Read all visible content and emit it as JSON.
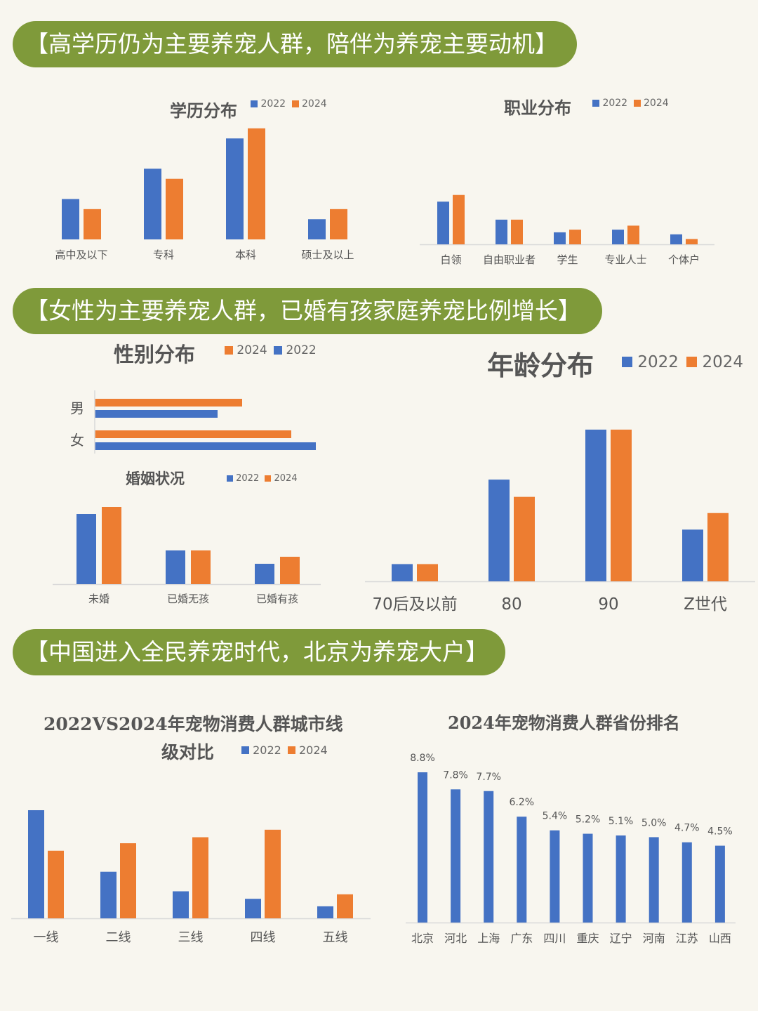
{
  "banners": {
    "b1": "【高学历仍为主要养宠人群，陪伴为养宠主要动机】",
    "b2": "【女性为主要养宠人群，已婚有孩家庭养宠比例增长】",
    "b3": "【中国进入全民养宠时代，北京为养宠大户】"
  },
  "colors": {
    "blue": "#4472c4",
    "orange": "#ed7d31",
    "banner": "#7f9a3a"
  },
  "chart_data": [
    {
      "id": "edu",
      "type": "bar",
      "title": "学历分布",
      "categories": [
        "高中及以下",
        "专科",
        "本科",
        "硕士及以上"
      ],
      "series": [
        {
          "name": "2022",
          "color": "#4472c4",
          "values": [
            6,
            10.5,
            15,
            3
          ]
        },
        {
          "name": "2024",
          "color": "#ed7d31",
          "values": [
            4.5,
            9,
            16.5,
            4.5
          ]
        }
      ],
      "ylim": [
        0,
        17
      ]
    },
    {
      "id": "job",
      "type": "bar",
      "title": "职业分布",
      "categories": [
        "白领",
        "自由职业者",
        "学生",
        "专业人士",
        "个体户"
      ],
      "series": [
        {
          "name": "2022",
          "color": "#4472c4",
          "values": [
            64,
            37,
            18,
            22,
            15
          ]
        },
        {
          "name": "2024",
          "color": "#ed7d31",
          "values": [
            74,
            37,
            22,
            28,
            8
          ]
        }
      ],
      "ylim": [
        0,
        80
      ]
    },
    {
      "id": "gender",
      "type": "bar",
      "orientation": "horizontal",
      "title": "性别分布",
      "categories": [
        "男",
        "女"
      ],
      "series": [
        {
          "name": "2024",
          "color": "#ed7d31",
          "values": [
            42,
            56
          ]
        },
        {
          "name": "2022",
          "color": "#4472c4",
          "values": [
            35,
            63
          ]
        }
      ],
      "xlim": [
        0,
        63
      ]
    },
    {
      "id": "marriage",
      "type": "bar",
      "title": "婚姻状况",
      "categories": [
        "未婚",
        "已婚无孩",
        "已婚有孩"
      ],
      "series": [
        {
          "name": "2022",
          "color": "#4472c4",
          "values": [
            50,
            24,
            14.5
          ]
        },
        {
          "name": "2024",
          "color": "#ed7d31",
          "values": [
            55,
            24,
            19.5
          ]
        }
      ],
      "ylim": [
        0,
        55
      ]
    },
    {
      "id": "age",
      "type": "bar",
      "title": "年龄分布",
      "categories": [
        "70后及以前",
        "80",
        "90",
        "Z世代"
      ],
      "series": [
        {
          "name": "2022",
          "color": "#4472c4",
          "values": [
            5,
            29.5,
            44,
            15
          ]
        },
        {
          "name": "2024",
          "color": "#ed7d31",
          "values": [
            5,
            24.5,
            44,
            19.8
          ]
        }
      ],
      "ylim": [
        0,
        45
      ]
    },
    {
      "id": "city",
      "type": "bar",
      "title": "2022VS2024年宠物消费人群城市线级对比",
      "title_lines": [
        "2022VS2024年宠物消费人群城市线",
        "级对比"
      ],
      "categories": [
        "一线",
        "二线",
        "三线",
        "四线",
        "五线"
      ],
      "series": [
        {
          "name": "2022",
          "color": "#4472c4",
          "values": [
            36,
            15.5,
            9,
            6.5,
            4
          ]
        },
        {
          "name": "2024",
          "color": "#ed7d31",
          "values": [
            22.5,
            25,
            27,
            29.5,
            8
          ]
        }
      ],
      "ylim": [
        0,
        36
      ]
    },
    {
      "id": "province",
      "type": "bar",
      "title": "2024年宠物消费人群省份排名",
      "categories": [
        "北京",
        "河北",
        "上海",
        "广东",
        "四川",
        "重庆",
        "辽宁",
        "河南",
        "江苏",
        "山西"
      ],
      "series": [
        {
          "name": "2024",
          "color": "#4472c4",
          "values": [
            8.8,
            7.8,
            7.7,
            6.2,
            5.4,
            5.2,
            5.1,
            5.0,
            4.7,
            4.5
          ]
        }
      ],
      "data_labels": [
        "8.8%",
        "7.8%",
        "7.7%",
        "6.2%",
        "5.4%",
        "5.2%",
        "5.1%",
        "5.0%",
        "4.7%",
        "4.5%"
      ],
      "ylim": [
        0,
        8.8
      ]
    }
  ]
}
